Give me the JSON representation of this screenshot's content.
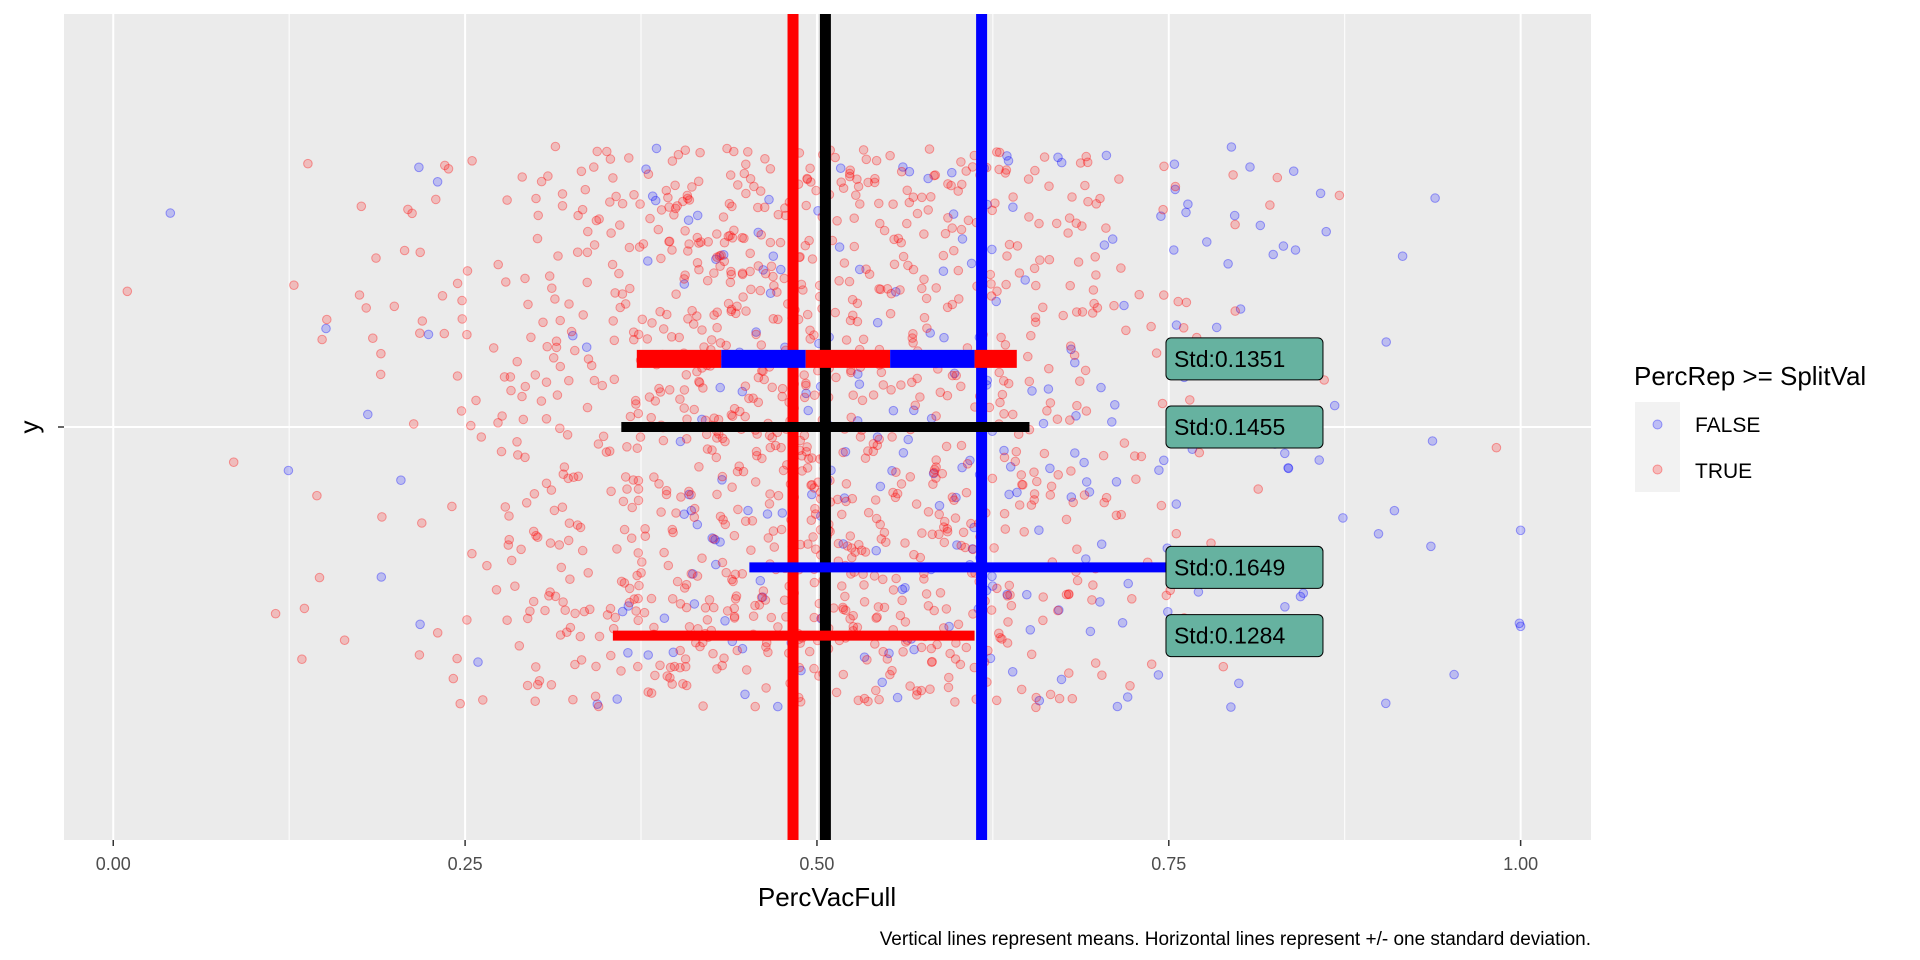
{
  "chart_data": {
    "type": "scatter",
    "xlabel": "PercVacFull",
    "ylabel": "y",
    "xlim": [
      -0.035,
      1.05
    ],
    "x_ticks": [
      0.0,
      0.25,
      0.5,
      0.75,
      1.0
    ],
    "x_tick_labels": [
      "0.00",
      "0.25",
      "0.50",
      "0.75",
      "1.00"
    ],
    "grid": true,
    "background": "#ebebeb",
    "legend": {
      "title": "PercRep >= SplitVal",
      "position": "right",
      "entries": [
        {
          "label": "FALSE",
          "color": "#0000ff"
        },
        {
          "label": "TRUE",
          "color": "#ff0000"
        }
      ]
    },
    "series": [
      {
        "name": "FALSE",
        "color": "#0000ff",
        "approx_count": 260,
        "x_mean": 0.617,
        "x_sd": 0.1649
      },
      {
        "name": "TRUE",
        "color": "#ff0000",
        "approx_count": 1200,
        "x_mean": 0.483,
        "x_sd": 0.1284
      }
    ],
    "overall": {
      "x_mean": 0.506,
      "x_sd": 0.1455
    },
    "pooled_within_sd": 0.1351,
    "mean_lines": [
      {
        "color": "#ff0000",
        "x": 0.483
      },
      {
        "color": "#000000",
        "x": 0.506
      },
      {
        "color": "#0000ff",
        "x": 0.617
      }
    ],
    "sd_bars": [
      {
        "color": "#000000",
        "x_from": 0.361,
        "x_to": 0.651,
        "y": 0
      },
      {
        "color": "#0000ff",
        "x_from": 0.452,
        "x_to": 0.782,
        "y": -0.34
      },
      {
        "color": "#ff0000",
        "x_from": 0.355,
        "x_to": 0.612,
        "y": -0.505
      },
      {
        "segments": [
          {
            "color": "#ff0000",
            "x_from": 0.372,
            "x_to": 0.432
          },
          {
            "color": "#0000ff",
            "x_from": 0.432,
            "x_to": 0.492
          },
          {
            "color": "#ff0000",
            "x_from": 0.492,
            "x_to": 0.552
          },
          {
            "color": "#0000ff",
            "x_from": 0.552,
            "x_to": 0.612
          },
          {
            "color": "#ff0000",
            "x_from": 0.612,
            "x_to": 0.642
          }
        ],
        "y": 0.165
      }
    ],
    "std_labels": [
      {
        "text": "Std:0.1351",
        "x": 0.748,
        "y": 0.165
      },
      {
        "text": "Std:0.1455",
        "x": 0.748,
        "y": 0
      },
      {
        "text": "Std:0.1649",
        "x": 0.748,
        "y": -0.34
      },
      {
        "text": "Std:0.1284",
        "x": 0.748,
        "y": -0.505
      }
    ],
    "label_fill": "#66b2a0",
    "point_cloud_y_range": [
      -0.68,
      0.68
    ],
    "caption": "Vertical lines represent means. Horizontal lines represent +/- one standard deviation."
  }
}
